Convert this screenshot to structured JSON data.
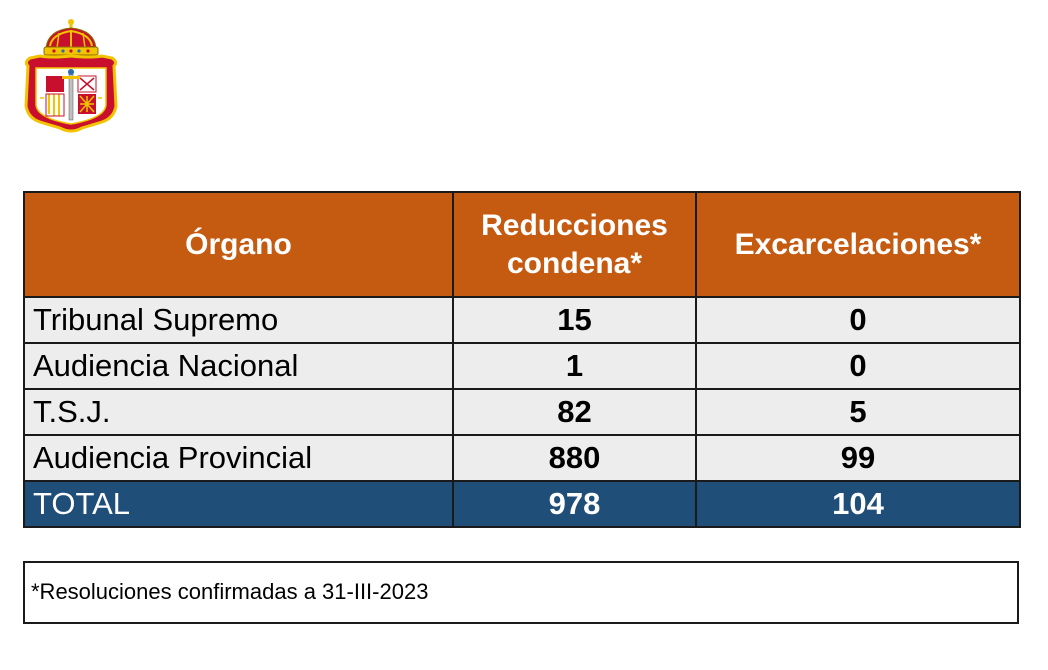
{
  "emblem": {
    "icon": "crown-shield-emblem-icon",
    "crown_color": "#c8102e",
    "shield_color": "#c8102e",
    "gold": "#f2c400"
  },
  "table": {
    "headers": [
      "Órgano",
      "Reducciones condena*",
      "Excarcelaciones*"
    ],
    "header_lines": [
      [
        "Órgano"
      ],
      [
        "Reducciones",
        "condena*"
      ],
      [
        "Excarcelaciones*"
      ]
    ],
    "rows": [
      {
        "organo": "Tribunal Supremo",
        "reducciones": "15",
        "excarcelaciones": "0"
      },
      {
        "organo": "Audiencia Nacional",
        "reducciones": "1",
        "excarcelaciones": "0"
      },
      {
        "organo": "T.S.J.",
        "reducciones": "82",
        "excarcelaciones": "5"
      },
      {
        "organo": "Audiencia Provincial",
        "reducciones": "880",
        "excarcelaciones": "99"
      }
    ],
    "total": {
      "organo": "TOTAL",
      "reducciones": "978",
      "excarcelaciones": "104"
    },
    "colors": {
      "header_bg": "#c55a11",
      "row_bg": "#ededed",
      "total_bg": "#1f4e79"
    }
  },
  "footnote": "*Resoluciones confirmadas a 31-III-2023"
}
